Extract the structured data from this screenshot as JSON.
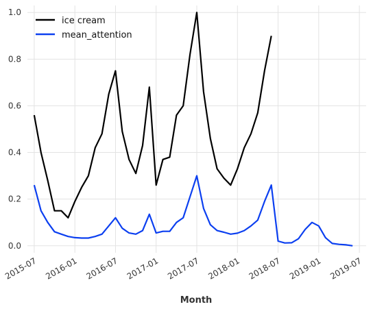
{
  "chart_data": {
    "type": "line",
    "title": "",
    "xlabel": "Month",
    "ylabel": "",
    "xlim": [
      "2015-06-01",
      "2019-08-01"
    ],
    "ylim": [
      -0.03,
      1.03
    ],
    "grid": true,
    "legend": "top-left",
    "x_ticks": [
      "2015-07",
      "2016-01",
      "2016-07",
      "2017-01",
      "2017-07",
      "2018-01",
      "2018-07",
      "2019-01",
      "2019-07"
    ],
    "y_ticks": [
      "0.0",
      "0.2",
      "0.4",
      "0.6",
      "0.8",
      "1.0"
    ],
    "series": [
      {
        "name": "ice cream",
        "color": "#000000",
        "x": [
          "2015-07",
          "2015-08",
          "2015-09",
          "2015-10",
          "2015-11",
          "2015-12",
          "2016-01",
          "2016-02",
          "2016-03",
          "2016-04",
          "2016-05",
          "2016-06",
          "2016-07",
          "2016-08",
          "2016-09",
          "2016-10",
          "2016-11",
          "2016-12",
          "2017-01",
          "2017-02",
          "2017-03",
          "2017-04",
          "2017-05",
          "2017-06",
          "2017-07",
          "2017-08",
          "2017-09",
          "2017-10",
          "2017-11",
          "2017-12",
          "2018-01",
          "2018-02",
          "2018-03",
          "2018-04",
          "2018-05",
          "2018-06"
        ],
        "values": [
          0.56,
          0.4,
          0.28,
          0.15,
          0.15,
          0.12,
          0.19,
          0.25,
          0.3,
          0.42,
          0.48,
          0.65,
          0.75,
          0.49,
          0.37,
          0.31,
          0.43,
          0.68,
          0.26,
          0.37,
          0.38,
          0.56,
          0.6,
          0.82,
          1.0,
          0.66,
          0.46,
          0.33,
          0.29,
          0.26,
          0.33,
          0.42,
          0.48,
          0.57,
          0.75,
          0.9
        ]
      },
      {
        "name": "mean_attention",
        "color": "#0b3ff0",
        "x": [
          "2015-07",
          "2015-08",
          "2015-09",
          "2015-10",
          "2015-11",
          "2015-12",
          "2016-01",
          "2016-02",
          "2016-03",
          "2016-04",
          "2016-05",
          "2016-06",
          "2016-07",
          "2016-08",
          "2016-09",
          "2016-10",
          "2016-11",
          "2016-12",
          "2017-01",
          "2017-02",
          "2017-03",
          "2017-04",
          "2017-05",
          "2017-06",
          "2017-07",
          "2017-08",
          "2017-09",
          "2017-10",
          "2017-11",
          "2017-12",
          "2018-01",
          "2018-02",
          "2018-03",
          "2018-04",
          "2018-05",
          "2018-06",
          "2018-07",
          "2018-08",
          "2018-09",
          "2018-10",
          "2018-11",
          "2018-12",
          "2019-01",
          "2019-02",
          "2019-03",
          "2019-04",
          "2019-05",
          "2019-06"
        ],
        "values": [
          0.26,
          0.15,
          0.1,
          0.06,
          0.05,
          0.04,
          0.035,
          0.033,
          0.033,
          0.04,
          0.05,
          0.085,
          0.12,
          0.075,
          0.055,
          0.05,
          0.065,
          0.135,
          0.055,
          0.062,
          0.062,
          0.1,
          0.12,
          0.21,
          0.3,
          0.16,
          0.09,
          0.065,
          0.058,
          0.05,
          0.054,
          0.065,
          0.085,
          0.11,
          0.19,
          0.26,
          0.02,
          0.012,
          0.013,
          0.03,
          0.07,
          0.1,
          0.085,
          0.035,
          0.01,
          0.006,
          0.004,
          0.0
        ]
      }
    ]
  }
}
